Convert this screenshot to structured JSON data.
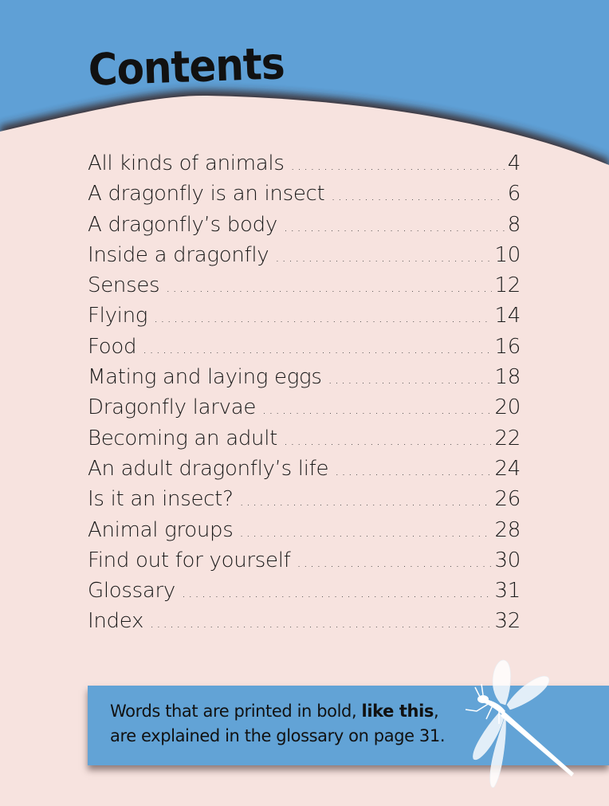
{
  "page": {
    "title": "Contents",
    "colors": {
      "header_blue": "#5fa0d6",
      "page_pink": "#f7e3df",
      "callout_blue": "#62a3d6"
    }
  },
  "toc": [
    {
      "label": "All kinds of animals",
      "page": "4"
    },
    {
      "label": "A dragonfly is an insect",
      "page": "6"
    },
    {
      "label": "A dragonfly’s body",
      "page": "8"
    },
    {
      "label": "Inside a dragonfly",
      "page": "10"
    },
    {
      "label": "Senses",
      "page": "12"
    },
    {
      "label": "Flying",
      "page": "14"
    },
    {
      "label": "Food",
      "page": "16"
    },
    {
      "label": "Mating and laying eggs",
      "page": "18"
    },
    {
      "label": "Dragonfly larvae",
      "page": "20"
    },
    {
      "label": "Becoming an adult",
      "page": "22"
    },
    {
      "label": "An adult dragonfly’s life",
      "page": "24"
    },
    {
      "label": "Is it an insect?",
      "page": "26"
    },
    {
      "label": "Animal groups",
      "page": "28"
    },
    {
      "label": "Find out for yourself",
      "page": "30"
    },
    {
      "label": "Glossary",
      "page": "31"
    },
    {
      "label": "Index",
      "page": "32"
    }
  ],
  "callout": {
    "line1_before": "Words that are printed in bold, ",
    "line1_bold": "like this",
    "line1_after": ",",
    "line2": "are explained in the glossary on page 31."
  },
  "decoration": {
    "icon": "dragonfly-icon"
  }
}
